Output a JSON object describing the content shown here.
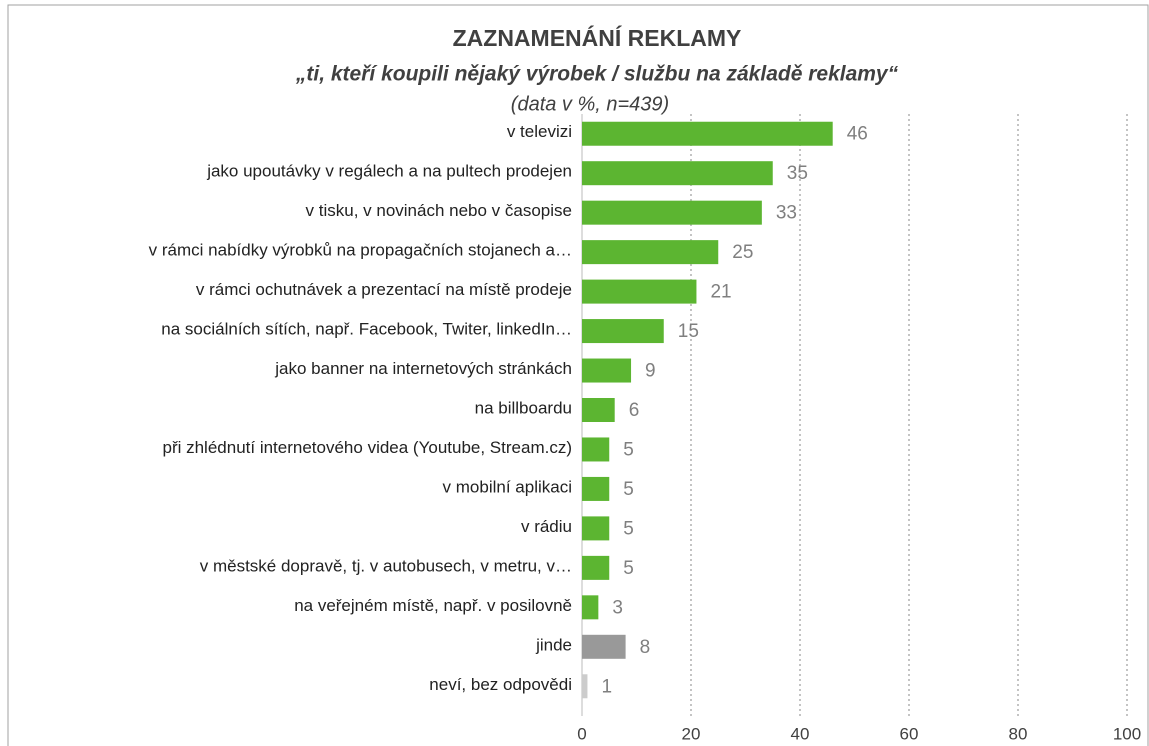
{
  "chart_data": {
    "type": "hbar",
    "title": "ZAZNAMENÁNÍ REKLAMY",
    "subtitle": "„ti, kteří koupili nějaký výrobek / službu na základě reklamy“",
    "note": "(data v %, n=439)",
    "categories": [
      "v televizi",
      "jako upoutávky v regálech a na pultech prodejen",
      "v tisku, v novinách nebo v časopise",
      "v rámci nabídky výrobků na propagačních stojanech a…",
      "v rámci ochutnávek a prezentací na místě prodeje",
      "na sociálních sítích, např. Facebook, Twiter, linkedIn…",
      "jako banner na internetových stránkách",
      "na billboardu",
      "při zhlédnutí internetového videa (Youtube, Stream.cz)",
      "v mobilní aplikaci",
      "v rádiu",
      "v městské dopravě, tj. v autobusech, v metru, v…",
      "na veřejném místě, např. v posilovně",
      "jinde",
      "neví, bez odpovědi"
    ],
    "values": [
      46,
      35,
      33,
      25,
      21,
      15,
      9,
      6,
      5,
      5,
      5,
      5,
      3,
      8,
      1
    ],
    "colors": [
      "#5cb531",
      "#5cb531",
      "#5cb531",
      "#5cb531",
      "#5cb531",
      "#5cb531",
      "#5cb531",
      "#5cb531",
      "#5cb531",
      "#5cb531",
      "#5cb531",
      "#5cb531",
      "#5cb531",
      "#999999",
      "#cccccc"
    ],
    "xlim": [
      0,
      100
    ],
    "xticks": [
      0,
      20,
      40,
      60,
      80,
      100
    ],
    "grid": true
  }
}
